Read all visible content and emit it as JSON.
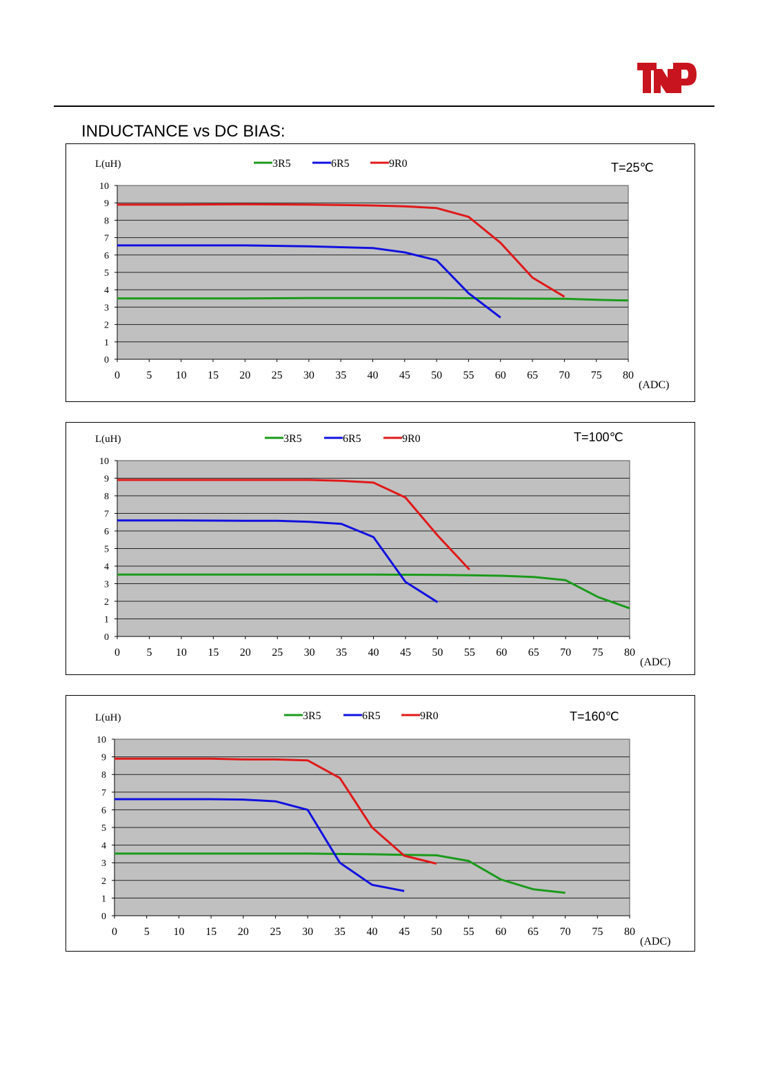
{
  "header": {
    "brand": "TNP"
  },
  "section_title": "INDUCTANCE vs DC BIAS:",
  "colors": {
    "3R5": "#1a9a1a",
    "6R5": "#1010e0",
    "9R0": "#e01818",
    "plot_bg": "#c0c0c0",
    "grid": "#000000"
  },
  "chart_data": [
    {
      "type": "line",
      "title": "T=25℃",
      "ylabel": "L(uH)",
      "xlabel": "(ADC)",
      "xlim": [
        0,
        80
      ],
      "ylim": [
        0,
        10
      ],
      "xticks": [
        0,
        5,
        10,
        15,
        20,
        25,
        30,
        35,
        40,
        45,
        50,
        55,
        60,
        65,
        70,
        75,
        80
      ],
      "yticks": [
        0,
        1,
        2,
        3,
        4,
        5,
        6,
        7,
        8,
        9,
        10
      ],
      "grid": "horizontal",
      "legend": "top-center",
      "series": [
        {
          "name": "3R5",
          "color": "#1a9a1a",
          "x": [
            0,
            10,
            20,
            30,
            40,
            50,
            60,
            70,
            75,
            80
          ],
          "y": [
            3.5,
            3.5,
            3.5,
            3.52,
            3.52,
            3.52,
            3.5,
            3.48,
            3.42,
            3.38
          ]
        },
        {
          "name": "6R5",
          "color": "#1010e0",
          "x": [
            0,
            10,
            20,
            30,
            35,
            40,
            45,
            50,
            55,
            60
          ],
          "y": [
            6.55,
            6.55,
            6.55,
            6.5,
            6.45,
            6.4,
            6.15,
            5.7,
            3.8,
            2.4
          ]
        },
        {
          "name": "9R0",
          "color": "#e01818",
          "x": [
            0,
            10,
            20,
            30,
            40,
            45,
            50,
            55,
            60,
            65,
            70
          ],
          "y": [
            8.9,
            8.9,
            8.92,
            8.9,
            8.85,
            8.8,
            8.7,
            8.2,
            6.7,
            4.7,
            3.6
          ]
        }
      ]
    },
    {
      "type": "line",
      "title": "T=100℃",
      "ylabel": "L(uH)",
      "xlabel": "(ADC)",
      "xlim": [
        0,
        80
      ],
      "ylim": [
        0,
        10
      ],
      "xticks": [
        0,
        5,
        10,
        15,
        20,
        25,
        30,
        35,
        40,
        45,
        50,
        55,
        60,
        65,
        70,
        75,
        80
      ],
      "yticks": [
        0,
        1,
        2,
        3,
        4,
        5,
        6,
        7,
        8,
        9,
        10
      ],
      "grid": "horizontal",
      "legend": "top-center",
      "series": [
        {
          "name": "3R5",
          "color": "#1a9a1a",
          "x": [
            0,
            10,
            20,
            30,
            40,
            50,
            55,
            60,
            65,
            70,
            75,
            80
          ],
          "y": [
            3.52,
            3.52,
            3.52,
            3.52,
            3.52,
            3.5,
            3.48,
            3.45,
            3.38,
            3.2,
            2.25,
            1.6
          ]
        },
        {
          "name": "6R5",
          "color": "#1010e0",
          "x": [
            0,
            10,
            20,
            25,
            30,
            35,
            40,
            45,
            50
          ],
          "y": [
            6.6,
            6.6,
            6.58,
            6.58,
            6.52,
            6.4,
            5.65,
            3.1,
            1.95
          ]
        },
        {
          "name": "9R0",
          "color": "#e01818",
          "x": [
            0,
            10,
            20,
            30,
            35,
            40,
            45,
            50,
            55
          ],
          "y": [
            8.9,
            8.9,
            8.9,
            8.9,
            8.85,
            8.75,
            7.9,
            5.75,
            3.8
          ]
        }
      ]
    },
    {
      "type": "line",
      "title": "T=160℃",
      "ylabel": "L(uH)",
      "xlabel": "(ADC)",
      "xlim": [
        0,
        80
      ],
      "ylim": [
        0,
        10
      ],
      "xticks": [
        0,
        5,
        10,
        15,
        20,
        25,
        30,
        35,
        40,
        45,
        50,
        55,
        60,
        65,
        70,
        75,
        80
      ],
      "yticks": [
        0,
        1,
        2,
        3,
        4,
        5,
        6,
        7,
        8,
        9,
        10
      ],
      "grid": "horizontal",
      "legend": "top-center",
      "series": [
        {
          "name": "3R5",
          "color": "#1a9a1a",
          "x": [
            0,
            10,
            20,
            30,
            40,
            45,
            50,
            55,
            60,
            65,
            70
          ],
          "y": [
            3.52,
            3.52,
            3.52,
            3.52,
            3.48,
            3.45,
            3.42,
            3.1,
            2.05,
            1.5,
            1.3
          ]
        },
        {
          "name": "6R5",
          "color": "#1010e0",
          "x": [
            0,
            10,
            15,
            20,
            25,
            30,
            35,
            40,
            45
          ],
          "y": [
            6.6,
            6.6,
            6.6,
            6.58,
            6.48,
            6.0,
            3.0,
            1.75,
            1.4
          ]
        },
        {
          "name": "9R0",
          "color": "#e01818",
          "x": [
            0,
            10,
            15,
            20,
            25,
            30,
            35,
            40,
            45,
            50
          ],
          "y": [
            8.9,
            8.9,
            8.9,
            8.85,
            8.85,
            8.8,
            7.8,
            5.0,
            3.4,
            2.95
          ]
        }
      ]
    }
  ]
}
